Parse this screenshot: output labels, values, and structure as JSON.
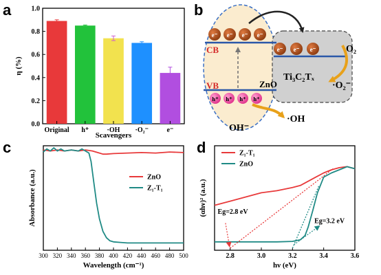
{
  "panels": {
    "a": "a",
    "b": "b",
    "c": "c",
    "d": "d"
  },
  "colors": {
    "red": "#e8393a",
    "green": "#22c23b",
    "yellow": "#f2e24e",
    "cyan": "#1e90ff",
    "purple": "#b14ee0",
    "teal": "#1f8a85",
    "cb_orange": "#c8541a",
    "zno_fill": "#fbeccf",
    "ti_fill": "#d0d0d0"
  },
  "chart_data": [
    {
      "type": "bar",
      "title": "",
      "xlabel": "Scavengers",
      "ylabel": "η (%)",
      "ylim": [
        0,
        1.0
      ],
      "yticks": [
        "0.0",
        "0.2",
        "0.4",
        "0.6",
        "0.8",
        "1.0"
      ],
      "categories": [
        "Original",
        "h⁺",
        "·OH",
        "·O₂⁻",
        "e⁻"
      ],
      "values": [
        0.89,
        0.85,
        0.74,
        0.7,
        0.44
      ],
      "errors": [
        0.01,
        0.005,
        0.02,
        0.01,
        0.05
      ],
      "bar_colors": [
        "#e8393a",
        "#22c23b",
        "#f2e24e",
        "#1e90ff",
        "#b14ee0"
      ],
      "error_colors": [
        "#e8393a",
        "#22c23b",
        "#d060d0",
        "#1e90ff",
        "#b14ee0"
      ]
    },
    {
      "type": "line",
      "title": "",
      "xlabel": "Wavelength (cm⁻¹)",
      "ylabel": "Absorbance (a.u.)",
      "xlim": [
        300,
        500
      ],
      "xticks": [
        "300",
        "320",
        "340",
        "360",
        "380",
        "400",
        "420",
        "440",
        "460",
        "480",
        "500"
      ],
      "ylim": [
        0,
        1
      ],
      "legend": "right",
      "series": [
        {
          "name": "ZnO",
          "color": "#e8393a",
          "x": [
            300,
            310,
            320,
            330,
            340,
            350,
            360,
            370,
            375,
            380,
            385,
            390,
            400,
            420,
            440,
            460,
            480,
            500
          ],
          "y": [
            0.96,
            0.95,
            0.96,
            0.95,
            0.96,
            0.95,
            0.96,
            0.95,
            0.94,
            0.93,
            0.92,
            0.92,
            0.925,
            0.93,
            0.935,
            0.93,
            0.94,
            0.935
          ]
        },
        {
          "name": "Z₁-T₁",
          "color": "#1f8a85",
          "x": [
            300,
            305,
            310,
            315,
            320,
            325,
            330,
            340,
            350,
            355,
            360,
            365,
            368,
            372,
            376,
            380,
            385,
            390,
            395,
            400,
            410,
            420,
            440,
            460,
            480,
            500
          ],
          "y": [
            0.94,
            0.97,
            0.95,
            0.98,
            0.95,
            0.97,
            0.95,
            0.96,
            0.95,
            0.97,
            0.95,
            0.93,
            0.85,
            0.65,
            0.45,
            0.3,
            0.18,
            0.12,
            0.09,
            0.08,
            0.075,
            0.07,
            0.07,
            0.07,
            0.07,
            0.07
          ]
        }
      ]
    },
    {
      "type": "line",
      "title": "",
      "xlabel": "hν (eV)",
      "ylabel": "(αhν)² (a.u.)",
      "xlim": [
        2.7,
        3.6
      ],
      "xticks": [
        "2.8",
        "3.0",
        "3.2",
        "3.4",
        "3.6"
      ],
      "ylim": [
        0,
        1
      ],
      "legend": "top-left",
      "series": [
        {
          "name": "Z₁-T₁",
          "color": "#e8393a",
          "x": [
            2.7,
            2.8,
            2.9,
            3.0,
            3.1,
            3.2,
            3.25,
            3.3,
            3.35,
            3.4,
            3.45,
            3.5,
            3.55,
            3.6
          ],
          "y": [
            0.43,
            0.47,
            0.51,
            0.55,
            0.57,
            0.6,
            0.62,
            0.66,
            0.7,
            0.74,
            0.77,
            0.79,
            0.8,
            0.78
          ]
        },
        {
          "name": "ZnO",
          "color": "#1f8a85",
          "x": [
            2.7,
            2.9,
            3.1,
            3.2,
            3.25,
            3.28,
            3.3,
            3.33,
            3.36,
            3.4,
            3.45,
            3.5,
            3.55,
            3.6
          ],
          "y": [
            0.08,
            0.08,
            0.08,
            0.085,
            0.1,
            0.14,
            0.22,
            0.38,
            0.55,
            0.7,
            0.74,
            0.77,
            0.8,
            0.78
          ]
        }
      ],
      "annotations": [
        {
          "text": "Eg=2.8 eV",
          "value": 2.8,
          "color": "#e8393a"
        },
        {
          "text": "Eg=3.2 eV",
          "value": 3.2,
          "color": "#1f8a85"
        }
      ]
    }
  ],
  "scheme": {
    "cb": "CB",
    "vb": "VB",
    "zno": "ZnO",
    "electron": "e⁻",
    "hole": "h⁺",
    "ti_label": "Ti₃C₂Tₓ",
    "o2": "O₂",
    "o2_radical": "·O₂⁻",
    "oh_minus": "OH⁻",
    "oh_radical": "·OH"
  }
}
